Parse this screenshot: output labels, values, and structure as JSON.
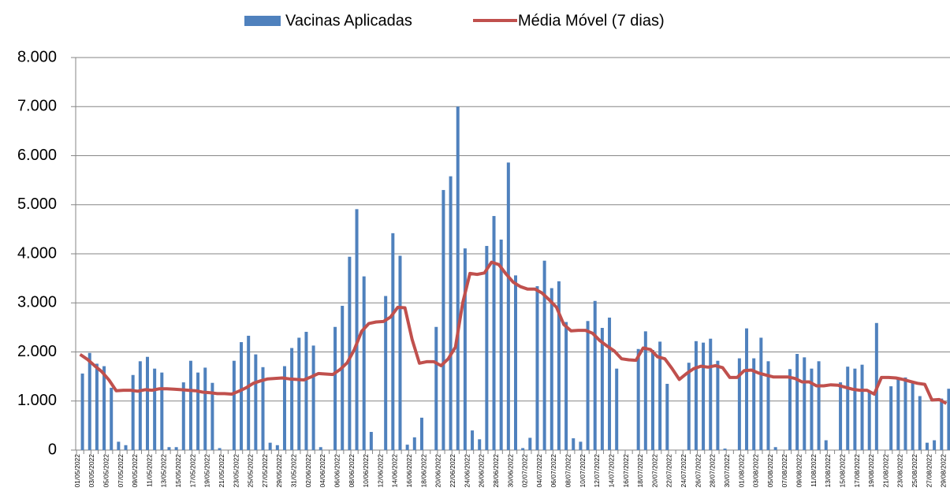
{
  "chart_data": {
    "type": "bar",
    "categories": [
      "01/05/2022",
      null,
      "03/05/2022",
      null,
      "05/05/2022",
      null,
      "07/05/2022",
      null,
      "09/05/2022",
      null,
      "11/05/2022",
      null,
      "13/05/2022",
      null,
      "15/05/2022",
      null,
      "17/05/2022",
      null,
      "19/05/2022",
      null,
      "21/05/2022",
      null,
      "23/05/2022",
      null,
      "25/05/2022",
      null,
      "27/05/2022",
      null,
      "29/05/2022",
      null,
      "31/05/2022",
      null,
      "02/06/2022",
      null,
      "04/06/2022",
      null,
      "06/06/2022",
      null,
      "08/06/2022",
      null,
      "10/06/2022",
      null,
      "12/06/2022",
      null,
      "14/06/2022",
      null,
      "16/06/2022",
      null,
      "18/06/2022",
      null,
      "20/06/2022",
      null,
      "22/06/2022",
      null,
      "24/06/2022",
      null,
      "26/06/2022",
      null,
      "28/06/2022",
      null,
      "30/06/2022",
      null,
      "02/07/2022",
      null,
      "04/07/2022",
      null,
      "06/07/2022",
      null,
      "08/07/2022",
      null,
      "10/07/2022",
      null,
      "12/07/2022",
      null,
      "14/07/2022",
      null,
      "16/07/2022",
      null,
      "18/07/2022",
      null,
      "20/07/2022",
      null,
      "22/07/2022",
      null,
      "24/07/2022",
      null,
      "26/07/2022",
      null,
      "28/07/2022",
      null,
      "30/07/2022",
      null,
      "01/08/2022",
      null,
      "03/08/2022",
      null,
      "05/08/2022",
      null,
      "07/08/2022",
      null,
      "09/08/2022",
      null,
      "11/08/2022",
      null,
      "13/08/2022",
      null,
      "15/08/2022",
      null,
      "17/08/2022",
      null,
      "19/08/2022",
      null,
      "21/08/2022",
      null,
      "23/08/2022",
      null,
      "25/08/2022",
      null,
      "27/08/2022",
      null,
      "29/08/2022"
    ],
    "series": [
      {
        "name": "Vacinas Aplicadas",
        "type": "bar",
        "color": "#4f81bd",
        "values": [
          1560,
          1980,
          1760,
          1710,
          1270,
          170,
          100,
          1530,
          1810,
          1900,
          1660,
          1580,
          60,
          60,
          1380,
          1820,
          1580,
          1680,
          1370,
          40,
          0,
          1820,
          2200,
          2330,
          1950,
          1690,
          150,
          100,
          1710,
          2080,
          2290,
          2410,
          2130,
          60,
          0,
          2510,
          2940,
          3940,
          4910,
          3540,
          370,
          0,
          3140,
          4420,
          3960,
          110,
          260,
          660,
          0,
          2510,
          5300,
          5580,
          7000,
          4110,
          400,
          220,
          4160,
          4770,
          4290,
          5860,
          3560,
          40,
          250,
          3340,
          3860,
          3300,
          3440,
          2610,
          240,
          170,
          2630,
          3040,
          2490,
          2700,
          1660,
          0,
          0,
          2060,
          2420,
          2040,
          2210,
          1350,
          0,
          0,
          1780,
          2220,
          2190,
          2270,
          1820,
          30,
          0,
          1870,
          2480,
          1870,
          2290,
          1810,
          60,
          0,
          1650,
          1960,
          1890,
          1660,
          1810,
          200,
          0,
          1380,
          1700,
          1660,
          1740,
          1180,
          2590,
          0,
          1300,
          1450,
          1480,
          1370,
          1100,
          150,
          200,
          1050,
          1250
        ]
      },
      {
        "name": "Média Móvel (7 dias)",
        "type": "line",
        "color": "#c0504d",
        "values": [
          1950,
          1850,
          1720,
          1600,
          1430,
          1210,
          1220,
          1220,
          1200,
          1230,
          1220,
          1250,
          1250,
          1240,
          1230,
          1220,
          1210,
          1180,
          1170,
          1150,
          1150,
          1140,
          1200,
          1270,
          1360,
          1410,
          1450,
          1460,
          1470,
          1450,
          1440,
          1430,
          1490,
          1560,
          1550,
          1540,
          1640,
          1780,
          2050,
          2420,
          2580,
          2610,
          2620,
          2710,
          2910,
          2900,
          2250,
          1770,
          1800,
          1800,
          1720,
          1860,
          2100,
          3000,
          3600,
          3580,
          3610,
          3830,
          3780,
          3590,
          3420,
          3330,
          3280,
          3280,
          3200,
          3060,
          2910,
          2560,
          2430,
          2440,
          2440,
          2380,
          2230,
          2120,
          2020,
          1860,
          1840,
          1830,
          2080,
          2050,
          1900,
          1860,
          1660,
          1440,
          1560,
          1660,
          1710,
          1690,
          1720,
          1680,
          1480,
          1480,
          1620,
          1630,
          1570,
          1530,
          1490,
          1490,
          1490,
          1460,
          1390,
          1390,
          1310,
          1310,
          1330,
          1320,
          1280,
          1240,
          1220,
          1220,
          1140,
          1480,
          1480,
          1470,
          1440,
          1400,
          1360,
          1340,
          1020,
          1030,
          950
        ]
      }
    ],
    "ylim": [
      0,
      8000
    ],
    "yticks": [
      0,
      {
        "value": 1000,
        "label": "1.000"
      },
      {
        "value": 2000,
        "label": "2.000"
      },
      {
        "value": 3000,
        "label": "3.000"
      },
      {
        "value": 4000,
        "label": "4.000"
      },
      {
        "value": 5000,
        "label": "5.000"
      },
      {
        "value": 6000,
        "label": "6.000"
      },
      {
        "value": 7000,
        "label": "7.000"
      },
      {
        "value": 8000,
        "label": "8.000"
      }
    ],
    "grid": true,
    "legend": "top"
  }
}
